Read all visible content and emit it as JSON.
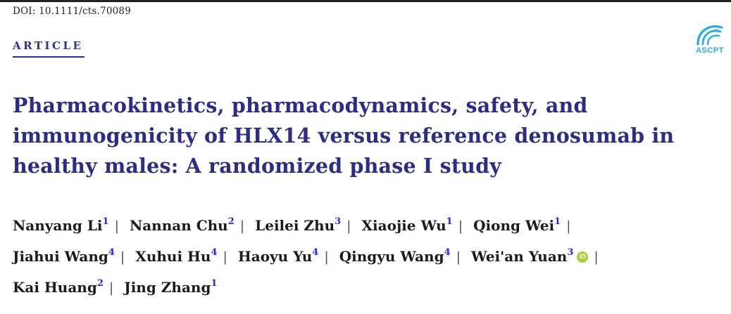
{
  "page": {
    "background_color": "#ffffff"
  },
  "header": {
    "doi": "DOI: 10.1111/cts.70089",
    "article_label": "ARTICLE",
    "accent_color": "#2e3192",
    "rule_color": "#231f20"
  },
  "logo": {
    "text": "ASCPT",
    "color": "#29abe2"
  },
  "title": {
    "color": "#2d2d82",
    "lines": [
      "Pharmacokinetics, pharmacodynamics, safety, and",
      "immunogenicity of HLX14 versus reference denosumab in",
      "healthy males: A randomized phase I study"
    ]
  },
  "authors": {
    "separator": "|",
    "superscript_color": "#2727d4",
    "orcid_icon_label": "iD",
    "orcid_color": "#a6ce39",
    "list": [
      {
        "name": "Nanyang Li",
        "affiliation": "1"
      },
      {
        "name": "Nannan Chu",
        "affiliation": "2"
      },
      {
        "name": "Leilei Zhu",
        "affiliation": "3"
      },
      {
        "name": "Xiaojie Wu",
        "affiliation": "1"
      },
      {
        "name": "Qiong Wei",
        "affiliation": "1"
      },
      {
        "name": "Jiahui Wang",
        "affiliation": "4"
      },
      {
        "name": "Xuhui Hu",
        "affiliation": "4"
      },
      {
        "name": "Haoyu Yu",
        "affiliation": "4"
      },
      {
        "name": "Qingyu Wang",
        "affiliation": "4"
      },
      {
        "name": "Wei'an Yuan",
        "affiliation": "3",
        "orcid": true
      },
      {
        "name": "Kai Huang",
        "affiliation": "2"
      },
      {
        "name": "Jing Zhang",
        "affiliation": "1"
      }
    ]
  }
}
